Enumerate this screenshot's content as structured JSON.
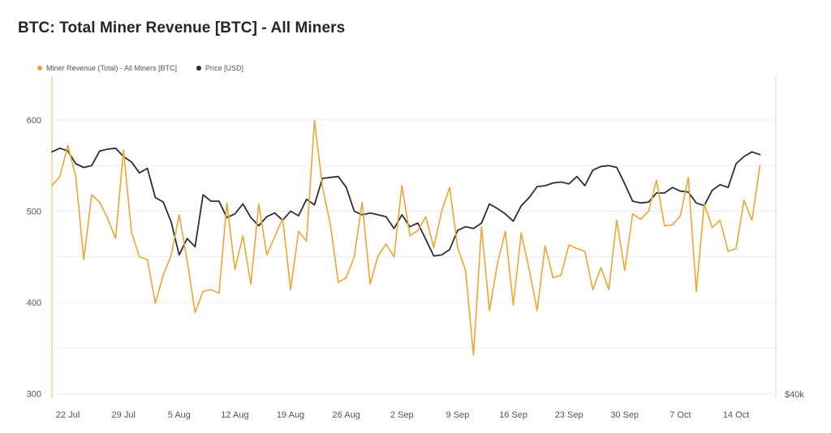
{
  "title": "BTC: Total Miner Revenue [BTC] - All Miners",
  "colors": {
    "revenue": "#f0a531",
    "price": "#2f2f2f",
    "grid": "#eeeeee",
    "axis_text": "#555555"
  },
  "chart_data": {
    "type": "line",
    "title": "BTC: Total Miner Revenue [BTC] - All Miners",
    "legend_position": "top-left",
    "grid": true,
    "x_start": "2024-07-20",
    "x_end": "2024-10-19",
    "x_ticks": [
      {
        "date": "2024-07-22",
        "label": "22 Jul"
      },
      {
        "date": "2024-07-29",
        "label": "29 Jul"
      },
      {
        "date": "2024-08-05",
        "label": "5 Aug"
      },
      {
        "date": "2024-08-12",
        "label": "12 Aug"
      },
      {
        "date": "2024-08-19",
        "label": "19 Aug"
      },
      {
        "date": "2024-08-26",
        "label": "26 Aug"
      },
      {
        "date": "2024-09-02",
        "label": "2 Sep"
      },
      {
        "date": "2024-09-09",
        "label": "9 Sep"
      },
      {
        "date": "2024-09-16",
        "label": "16 Sep"
      },
      {
        "date": "2024-09-23",
        "label": "23 Sep"
      },
      {
        "date": "2024-09-30",
        "label": "30 Sep"
      },
      {
        "date": "2024-10-07",
        "label": "7 Oct"
      },
      {
        "date": "2024-10-14",
        "label": "14 Oct"
      }
    ],
    "y_left": {
      "ticks": [
        300,
        400,
        500,
        600
      ],
      "labels": [
        "300",
        "400",
        "500",
        "600"
      ],
      "range": [
        295,
        648
      ]
    },
    "y_right": {
      "label": "$40k"
    },
    "series": [
      {
        "name": "Miner Revenue (Total) - All Miners [BTC]",
        "axis": "left",
        "color": "#f0a531",
        "values": [
          [
            "2024-07-20",
            528
          ],
          [
            "2024-07-21",
            538
          ],
          [
            "2024-07-22",
            572
          ],
          [
            "2024-07-23",
            538
          ],
          [
            "2024-07-24",
            447
          ],
          [
            "2024-07-25",
            518
          ],
          [
            "2024-07-26",
            510
          ],
          [
            "2024-07-27",
            492
          ],
          [
            "2024-07-28",
            470
          ],
          [
            "2024-07-29",
            567
          ],
          [
            "2024-07-30",
            477
          ],
          [
            "2024-07-31",
            450
          ],
          [
            "2024-08-01",
            447
          ],
          [
            "2024-08-02",
            399
          ],
          [
            "2024-08-03",
            430
          ],
          [
            "2024-08-04",
            452
          ],
          [
            "2024-08-05",
            496
          ],
          [
            "2024-08-06",
            446
          ],
          [
            "2024-08-07",
            389
          ],
          [
            "2024-08-08",
            412
          ],
          [
            "2024-08-09",
            414
          ],
          [
            "2024-08-10",
            410
          ],
          [
            "2024-08-11",
            509
          ],
          [
            "2024-08-12",
            436
          ],
          [
            "2024-08-13",
            473
          ],
          [
            "2024-08-14",
            420
          ],
          [
            "2024-08-15",
            508
          ],
          [
            "2024-08-16",
            452
          ],
          [
            "2024-08-17",
            472
          ],
          [
            "2024-08-18",
            492
          ],
          [
            "2024-08-19",
            414
          ],
          [
            "2024-08-20",
            478
          ],
          [
            "2024-08-21",
            467
          ],
          [
            "2024-08-22",
            600
          ],
          [
            "2024-08-23",
            527
          ],
          [
            "2024-08-24",
            485
          ],
          [
            "2024-08-25",
            422
          ],
          [
            "2024-08-26",
            427
          ],
          [
            "2024-08-27",
            450
          ],
          [
            "2024-08-28",
            510
          ],
          [
            "2024-08-29",
            420
          ],
          [
            "2024-08-30",
            451
          ],
          [
            "2024-08-31",
            464
          ],
          [
            "2024-09-01",
            450
          ],
          [
            "2024-09-02",
            528
          ],
          [
            "2024-09-03",
            473
          ],
          [
            "2024-09-04",
            479
          ],
          [
            "2024-09-05",
            494
          ],
          [
            "2024-09-06",
            460
          ],
          [
            "2024-09-07",
            500
          ],
          [
            "2024-09-08",
            526
          ],
          [
            "2024-09-09",
            460
          ],
          [
            "2024-09-10",
            435
          ],
          [
            "2024-09-11",
            342
          ],
          [
            "2024-09-12",
            483
          ],
          [
            "2024-09-13",
            391
          ],
          [
            "2024-09-14",
            442
          ],
          [
            "2024-09-15",
            478
          ],
          [
            "2024-09-16",
            397
          ],
          [
            "2024-09-17",
            476
          ],
          [
            "2024-09-18",
            436
          ],
          [
            "2024-09-19",
            391
          ],
          [
            "2024-09-20",
            462
          ],
          [
            "2024-09-21",
            427
          ],
          [
            "2024-09-22",
            430
          ],
          [
            "2024-09-23",
            463
          ],
          [
            "2024-09-24",
            459
          ],
          [
            "2024-09-25",
            456
          ],
          [
            "2024-09-26",
            414
          ],
          [
            "2024-09-27",
            438
          ],
          [
            "2024-09-28",
            414
          ],
          [
            "2024-09-29",
            490
          ],
          [
            "2024-09-30",
            435
          ],
          [
            "2024-10-01",
            497
          ],
          [
            "2024-10-02",
            491
          ],
          [
            "2024-10-03",
            500
          ],
          [
            "2024-10-04",
            534
          ],
          [
            "2024-10-05",
            484
          ],
          [
            "2024-10-06",
            485
          ],
          [
            "2024-10-07",
            495
          ],
          [
            "2024-10-08",
            537
          ],
          [
            "2024-10-09",
            412
          ],
          [
            "2024-10-10",
            508
          ],
          [
            "2024-10-11",
            482
          ],
          [
            "2024-10-12",
            490
          ],
          [
            "2024-10-13",
            456
          ],
          [
            "2024-10-14",
            459
          ],
          [
            "2024-10-15",
            512
          ],
          [
            "2024-10-16",
            490
          ],
          [
            "2024-10-17",
            550
          ]
        ]
      },
      {
        "name": "Price [USD]",
        "axis": "right",
        "color": "#2f2f2f",
        "values_note": "right-axis values not labeled except $40k; plotted as relative shape",
        "values": [
          [
            "2024-07-20",
            565
          ],
          [
            "2024-07-21",
            569
          ],
          [
            "2024-07-22",
            566
          ],
          [
            "2024-07-23",
            552
          ],
          [
            "2024-07-24",
            548
          ],
          [
            "2024-07-25",
            550
          ],
          [
            "2024-07-26",
            566
          ],
          [
            "2024-07-27",
            568
          ],
          [
            "2024-07-28",
            569
          ],
          [
            "2024-07-29",
            560
          ],
          [
            "2024-07-30",
            554
          ],
          [
            "2024-07-31",
            542
          ],
          [
            "2024-08-01",
            547
          ],
          [
            "2024-08-02",
            515
          ],
          [
            "2024-08-03",
            510
          ],
          [
            "2024-08-04",
            488
          ],
          [
            "2024-08-05",
            452
          ],
          [
            "2024-08-06",
            470
          ],
          [
            "2024-08-07",
            461
          ],
          [
            "2024-08-08",
            518
          ],
          [
            "2024-08-09",
            511
          ],
          [
            "2024-08-10",
            511
          ],
          [
            "2024-08-11",
            493
          ],
          [
            "2024-08-12",
            497
          ],
          [
            "2024-08-13",
            508
          ],
          [
            "2024-08-14",
            493
          ],
          [
            "2024-08-15",
            484
          ],
          [
            "2024-08-16",
            494
          ],
          [
            "2024-08-17",
            498
          ],
          [
            "2024-08-18",
            490
          ],
          [
            "2024-08-19",
            500
          ],
          [
            "2024-08-20",
            495
          ],
          [
            "2024-08-21",
            513
          ],
          [
            "2024-08-22",
            507
          ],
          [
            "2024-08-23",
            536
          ],
          [
            "2024-08-24",
            537
          ],
          [
            "2024-08-25",
            538
          ],
          [
            "2024-08-26",
            526
          ],
          [
            "2024-08-27",
            500
          ],
          [
            "2024-08-28",
            496
          ],
          [
            "2024-08-29",
            498
          ],
          [
            "2024-08-30",
            496
          ],
          [
            "2024-08-31",
            494
          ],
          [
            "2024-09-01",
            481
          ],
          [
            "2024-09-02",
            496
          ],
          [
            "2024-09-03",
            483
          ],
          [
            "2024-09-04",
            487
          ],
          [
            "2024-09-05",
            469
          ],
          [
            "2024-09-06",
            451
          ],
          [
            "2024-09-07",
            452
          ],
          [
            "2024-09-08",
            458
          ],
          [
            "2024-09-09",
            479
          ],
          [
            "2024-09-10",
            483
          ],
          [
            "2024-09-11",
            481
          ],
          [
            "2024-09-12",
            487
          ],
          [
            "2024-09-13",
            508
          ],
          [
            "2024-09-14",
            503
          ],
          [
            "2024-09-15",
            497
          ],
          [
            "2024-09-16",
            489
          ],
          [
            "2024-09-17",
            506
          ],
          [
            "2024-09-18",
            515
          ],
          [
            "2024-09-19",
            527
          ],
          [
            "2024-09-20",
            528
          ],
          [
            "2024-09-21",
            531
          ],
          [
            "2024-09-22",
            532
          ],
          [
            "2024-09-23",
            530
          ],
          [
            "2024-09-24",
            538
          ],
          [
            "2024-09-25",
            528
          ],
          [
            "2024-09-26",
            545
          ],
          [
            "2024-09-27",
            549
          ],
          [
            "2024-09-28",
            550
          ],
          [
            "2024-09-29",
            548
          ],
          [
            "2024-09-30",
            530
          ],
          [
            "2024-10-01",
            511
          ],
          [
            "2024-10-02",
            509
          ],
          [
            "2024-10-03",
            510
          ],
          [
            "2024-10-04",
            520
          ],
          [
            "2024-10-05",
            520
          ],
          [
            "2024-10-06",
            526
          ],
          [
            "2024-10-07",
            522
          ],
          [
            "2024-10-08",
            521
          ],
          [
            "2024-10-09",
            509
          ],
          [
            "2024-10-10",
            506
          ],
          [
            "2024-10-11",
            523
          ],
          [
            "2024-10-12",
            529
          ],
          [
            "2024-10-13",
            526
          ],
          [
            "2024-10-14",
            552
          ],
          [
            "2024-10-15",
            560
          ],
          [
            "2024-10-16",
            565
          ],
          [
            "2024-10-17",
            562
          ]
        ]
      }
    ]
  }
}
